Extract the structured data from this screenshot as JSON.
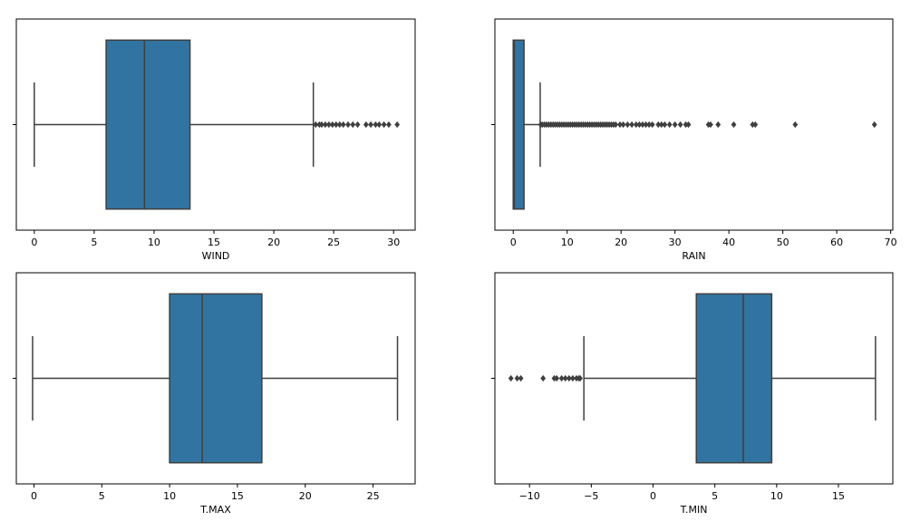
{
  "colors": {
    "box_fill": "#3274a1",
    "line": "#3f3f3f",
    "axis": "#000000",
    "background": "#ffffff"
  },
  "chart_data": [
    {
      "type": "box",
      "xlabel": "WIND",
      "xlim": [
        -1.5,
        31.8
      ],
      "xticks": [
        0,
        5,
        10,
        15,
        20,
        25,
        30
      ],
      "xtick_labels": [
        "0",
        "5",
        "10",
        "15",
        "20",
        "25",
        "30"
      ],
      "box": {
        "whisker_low": 0,
        "q1": 6.0,
        "median": 9.2,
        "q3": 13.0,
        "whisker_high": 23.3
      },
      "outliers": [
        23.5,
        23.8,
        24.0,
        24.3,
        24.6,
        24.9,
        25.2,
        25.5,
        25.8,
        26.2,
        26.6,
        27.0,
        27.7,
        28.1,
        28.5,
        28.8,
        29.2,
        29.6,
        30.3
      ]
    },
    {
      "type": "box",
      "xlabel": "RAIN",
      "xlim": [
        -3.4,
        70.4
      ],
      "xticks": [
        0,
        10,
        20,
        30,
        40,
        50,
        60,
        70
      ],
      "xtick_labels": [
        "0",
        "10",
        "20",
        "30",
        "40",
        "50",
        "60",
        "70"
      ],
      "box": {
        "whisker_low": 0,
        "q1": 0.0,
        "median": 0.2,
        "q3": 2.0,
        "whisker_high": 5.0
      },
      "outliers": [
        5.1,
        5.4,
        5.8,
        6.2,
        6.6,
        7.0,
        7.4,
        7.8,
        8.2,
        8.6,
        9.0,
        9.4,
        9.8,
        10.2,
        10.6,
        11.0,
        11.4,
        11.8,
        12.2,
        12.6,
        13.0,
        13.4,
        13.8,
        14.2,
        14.6,
        15.0,
        15.4,
        15.8,
        16.2,
        16.6,
        17.0,
        17.4,
        17.8,
        18.2,
        18.6,
        19.0,
        19.8,
        20.4,
        21.2,
        22.0,
        22.8,
        23.4,
        24.0,
        24.6,
        25.2,
        25.8,
        26.9,
        27.5,
        28.1,
        29.0,
        30.0,
        31.0,
        32.0,
        32.5,
        36.2,
        36.6,
        38.0,
        40.9,
        44.4,
        44.9,
        52.3,
        67.0
      ]
    },
    {
      "type": "box",
      "xlabel": "T.MAX",
      "xlim": [
        -1.3,
        28.1
      ],
      "xticks": [
        0,
        5,
        10,
        15,
        20,
        25
      ],
      "xtick_labels": [
        "0",
        "5",
        "10",
        "15",
        "20",
        "25"
      ],
      "box": {
        "whisker_low": -0.1,
        "q1": 10.0,
        "median": 12.4,
        "q3": 16.8,
        "whisker_high": 26.8
      },
      "outliers": []
    },
    {
      "type": "box",
      "xlabel": "T.MIN",
      "xlim": [
        -12.8,
        19.4
      ],
      "xticks": [
        -10,
        -5,
        0,
        5,
        10,
        15
      ],
      "xtick_labels": [
        "−10",
        "−5",
        "0",
        "5",
        "10",
        "15"
      ],
      "box": {
        "whisker_low": -5.6,
        "q1": 3.5,
        "median": 7.3,
        "q3": 9.6,
        "whisker_high": 18.0
      },
      "outliers": [
        -11.5,
        -11.0,
        -10.7,
        -8.9,
        -8.0,
        -7.8,
        -7.4,
        -7.1,
        -6.8,
        -6.5,
        -6.2,
        -6.0,
        -5.9
      ]
    }
  ]
}
